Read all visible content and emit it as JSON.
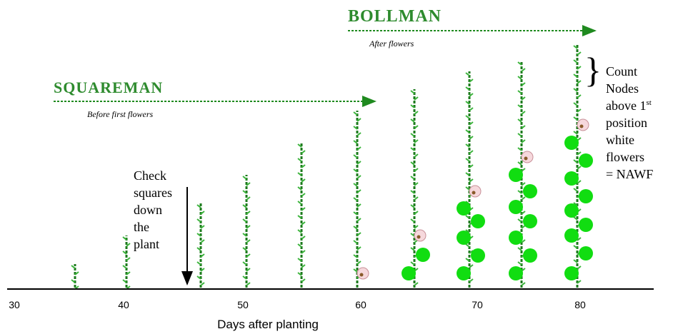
{
  "bollman": {
    "title": "BOLLMAN",
    "subtitle": "After flowers"
  },
  "squareman": {
    "title": "SQUAREMAN",
    "subtitle": "Before first flowers"
  },
  "check_note": {
    "lines": [
      "Check",
      "squares",
      "down",
      "the",
      "plant"
    ]
  },
  "count_note": {
    "lines": [
      "Count",
      "Nodes",
      {
        "text": "above 1",
        "sup": "st"
      },
      "position",
      "white",
      "flowers",
      "= NAWF"
    ]
  },
  "axis": {
    "ticks": [
      "30",
      "40",
      "50",
      "60",
      "70",
      "80"
    ],
    "label": "Days after planting"
  }
}
